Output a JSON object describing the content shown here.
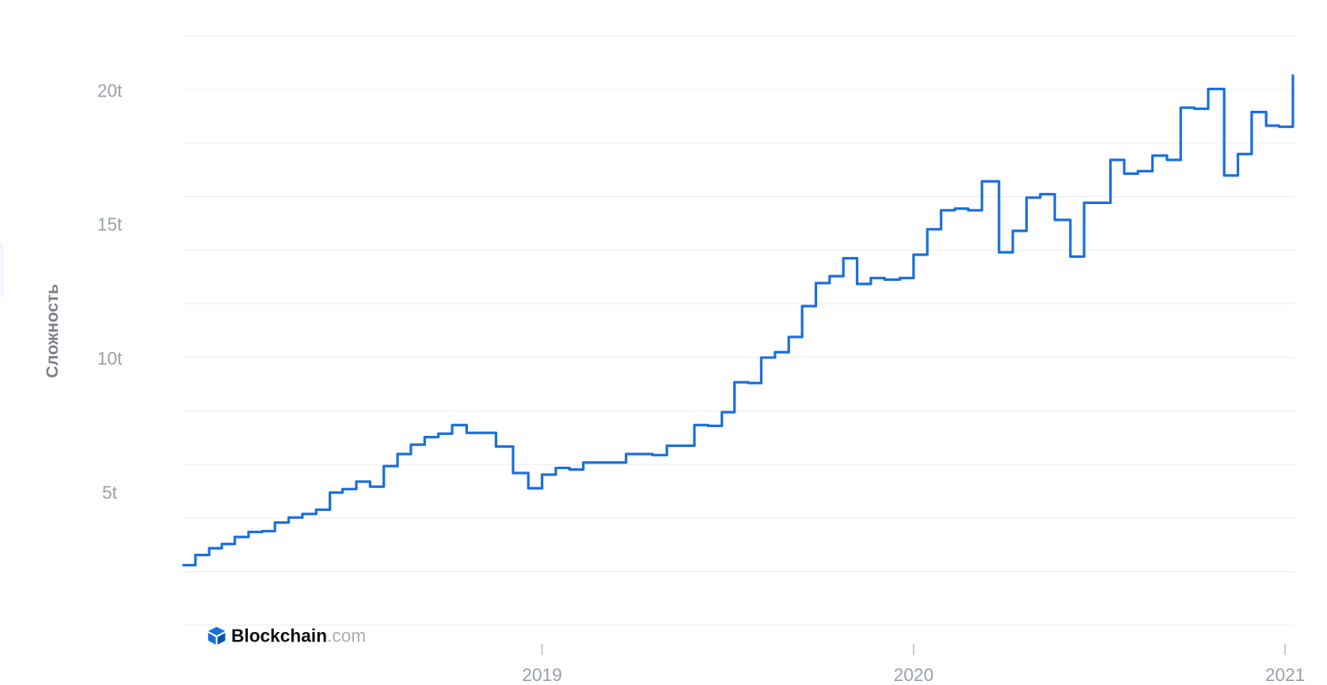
{
  "chart_data": {
    "type": "line",
    "y_label": "Сложность",
    "watermark": {
      "brand": "Blockchain",
      "suffix": ".com"
    },
    "color": "#1a6fdf",
    "step": true,
    "xlim": [
      2018.032,
      2021.025
    ],
    "xticks": [
      2019,
      2020,
      2021
    ],
    "ylim": [
      0,
      22
    ],
    "yticks": [
      {
        "value": 5,
        "label": "5t"
      },
      {
        "value": 10,
        "label": "10t"
      },
      {
        "value": 15,
        "label": "15t"
      },
      {
        "value": 20,
        "label": "20t"
      }
    ],
    "ygrid": [
      0,
      2,
      4,
      6,
      8,
      10,
      12,
      14,
      16,
      18,
      20,
      22
    ],
    "x": [
      2018.032,
      2018.067,
      2018.104,
      2018.138,
      2018.173,
      2018.21,
      2018.247,
      2018.281,
      2018.318,
      2018.355,
      2018.392,
      2018.429,
      2018.463,
      2018.5,
      2018.537,
      2018.574,
      2018.611,
      2018.647,
      2018.684,
      2018.721,
      2018.758,
      2018.797,
      2018.876,
      2018.922,
      2018.963,
      2019.0,
      2019.037,
      2019.074,
      2019.111,
      2019.226,
      2019.297,
      2019.336,
      2019.41,
      2019.447,
      2019.484,
      2019.518,
      2019.555,
      2019.59,
      2019.627,
      2019.664,
      2019.7,
      2019.737,
      2019.774,
      2019.811,
      2019.848,
      2019.885,
      2019.922,
      2019.963,
      2020.0,
      2020.037,
      2020.074,
      2020.111,
      2020.147,
      2020.184,
      2020.23,
      2020.267,
      2020.304,
      2020.341,
      2020.38,
      2020.422,
      2020.459,
      2020.53,
      2020.567,
      2020.604,
      2020.643,
      2020.682,
      2020.719,
      2020.756,
      2020.793,
      2020.836,
      2020.873,
      2020.91,
      2020.949,
      2020.984,
      2021.021
    ],
    "values": [
      2.24,
      2.62,
      2.87,
      3.03,
      3.29,
      3.48,
      3.51,
      3.83,
      4.02,
      4.15,
      4.31,
      4.95,
      5.08,
      5.36,
      5.17,
      5.94,
      6.39,
      6.74,
      7.02,
      7.15,
      7.47,
      7.18,
      6.67,
      5.68,
      5.11,
      5.62,
      5.87,
      5.81,
      6.07,
      6.39,
      6.35,
      6.7,
      7.47,
      7.44,
      7.95,
      9.07,
      9.04,
      9.99,
      10.19,
      10.76,
      11.91,
      12.77,
      13.03,
      13.7,
      12.74,
      12.96,
      12.9,
      12.96,
      13.83,
      14.78,
      15.49,
      15.55,
      15.49,
      16.57,
      13.92,
      14.72,
      15.96,
      16.09,
      15.13,
      13.76,
      15.77,
      17.37,
      16.86,
      16.95,
      17.53,
      17.37,
      19.32,
      19.28,
      20.02,
      16.79,
      17.59,
      19.16,
      18.65,
      18.61,
      20.56
    ]
  }
}
